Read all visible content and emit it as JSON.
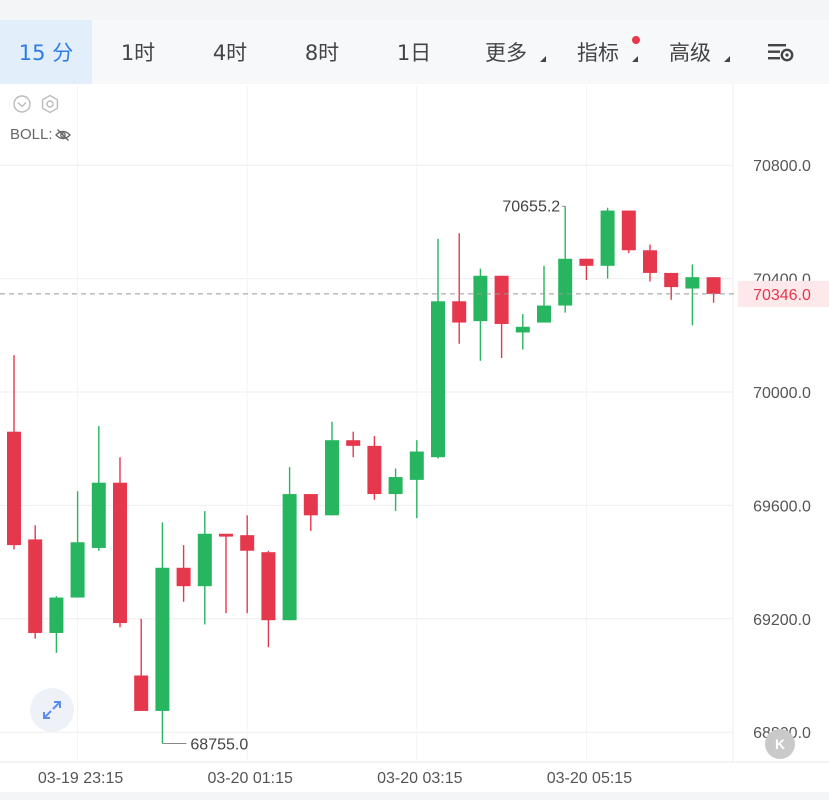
{
  "tabs": [
    {
      "label": "15 分",
      "active": true
    },
    {
      "label": "1时"
    },
    {
      "label": "4时"
    },
    {
      "label": "8时"
    },
    {
      "label": "1日"
    },
    {
      "label": "更多",
      "dropdown": true
    },
    {
      "label": "指标",
      "dropdown": true,
      "dot": true
    },
    {
      "label": "高级",
      "dropdown": true
    }
  ],
  "settings_icon": "chart-settings-icon",
  "indicator": {
    "label": "BOLL:",
    "icons": [
      "collapse-icon",
      "settings-icon",
      "eye-hidden-icon"
    ]
  },
  "expand_icon": "expand-icon",
  "k_button": {
    "label": "K"
  },
  "colors": {
    "up": "#27b55f",
    "down": "#e5384d",
    "accent": "#2f7de1",
    "grid": "#eeeeee",
    "price_line": "#e5384d"
  },
  "chart_data": {
    "type": "candlestick",
    "y_ticks": [
      "70800.0",
      "70400.0",
      "70000.0",
      "69600.0",
      "69200.0",
      "68800.0"
    ],
    "ylim": [
      68700,
      71020
    ],
    "x_labels": [
      "03-19 23:15",
      "03-20 01:15",
      "03-20 03:15",
      "03-20 05:15"
    ],
    "x_label_index": [
      3,
      11,
      19,
      27
    ],
    "current_price": "70346.0",
    "max_label": "70655.2",
    "min_label": "68755.0",
    "max_index": 26,
    "min_index": 7,
    "candles": [
      {
        "o": 69860,
        "h": 70130,
        "l": 69445,
        "c": 69460
      },
      {
        "o": 69480,
        "h": 69530,
        "l": 69130,
        "c": 69150
      },
      {
        "o": 69150,
        "h": 69280,
        "l": 69080,
        "c": 69275
      },
      {
        "o": 69275,
        "h": 69650,
        "l": 69275,
        "c": 69470
      },
      {
        "o": 69450,
        "h": 69880,
        "l": 69440,
        "c": 69680
      },
      {
        "o": 69680,
        "h": 69770,
        "l": 69170,
        "c": 69185
      },
      {
        "o": 69000,
        "h": 69200,
        "l": 68875,
        "c": 68875
      },
      {
        "o": 68875,
        "h": 69540,
        "l": 68760,
        "c": 69380
      },
      {
        "o": 69380,
        "h": 69460,
        "l": 69260,
        "c": 69315
      },
      {
        "o": 69315,
        "h": 69580,
        "l": 69180,
        "c": 69500
      },
      {
        "o": 69500,
        "h": 69500,
        "l": 69220,
        "c": 69490
      },
      {
        "o": 69495,
        "h": 69565,
        "l": 69220,
        "c": 69440
      },
      {
        "o": 69435,
        "h": 69440,
        "l": 69100,
        "c": 69195
      },
      {
        "o": 69195,
        "h": 69735,
        "l": 69195,
        "c": 69640
      },
      {
        "o": 69640,
        "h": 69640,
        "l": 69510,
        "c": 69565
      },
      {
        "o": 69565,
        "h": 69895,
        "l": 69565,
        "c": 69830
      },
      {
        "o": 69830,
        "h": 69860,
        "l": 69770,
        "c": 69810
      },
      {
        "o": 69810,
        "h": 69845,
        "l": 69620,
        "c": 69640
      },
      {
        "o": 69640,
        "h": 69730,
        "l": 69580,
        "c": 69700
      },
      {
        "o": 69690,
        "h": 69830,
        "l": 69555,
        "c": 69790
      },
      {
        "o": 69770,
        "h": 70540,
        "l": 69765,
        "c": 70320
      },
      {
        "o": 70320,
        "h": 70560,
        "l": 70170,
        "c": 70245
      },
      {
        "o": 70250,
        "h": 70435,
        "l": 70110,
        "c": 70410
      },
      {
        "o": 70410,
        "h": 70410,
        "l": 70120,
        "c": 70240
      },
      {
        "o": 70210,
        "h": 70275,
        "l": 70150,
        "c": 70230
      },
      {
        "o": 70245,
        "h": 70445,
        "l": 70245,
        "c": 70305
      },
      {
        "o": 70305,
        "h": 70655,
        "l": 70280,
        "c": 70470
      },
      {
        "o": 70470,
        "h": 70470,
        "l": 70395,
        "c": 70445
      },
      {
        "o": 70445,
        "h": 70650,
        "l": 70400,
        "c": 70640
      },
      {
        "o": 70640,
        "h": 70640,
        "l": 70490,
        "c": 70500
      },
      {
        "o": 70500,
        "h": 70520,
        "l": 70390,
        "c": 70420
      },
      {
        "o": 70420,
        "h": 70420,
        "l": 70325,
        "c": 70370
      },
      {
        "o": 70365,
        "h": 70450,
        "l": 70235,
        "c": 70405
      },
      {
        "o": 70405,
        "h": 70405,
        "l": 70315,
        "c": 70346
      }
    ]
  }
}
